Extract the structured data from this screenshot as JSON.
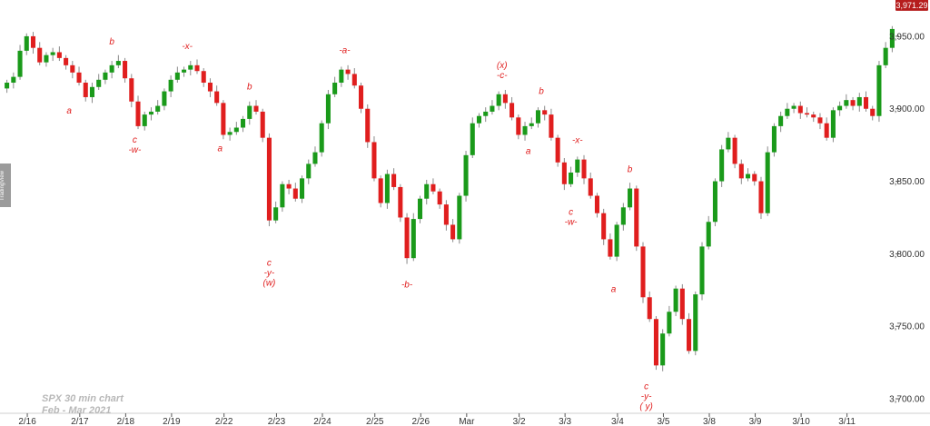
{
  "chart_data": {
    "type": "candlestick",
    "annotation_lines": [
      "SPX 30 min chart",
      "Feb - Mar 2021"
    ],
    "watermark": "TradingView",
    "last_price": "3,971.29",
    "last_price_value": 3971.29,
    "ylim": [
      3690,
      3975
    ],
    "y_ticks": [
      {
        "value": 3700,
        "label": "3,700.00"
      },
      {
        "value": 3750,
        "label": "3,750.00"
      },
      {
        "value": 3800,
        "label": "3,800.00"
      },
      {
        "value": 3850,
        "label": "3,850.00"
      },
      {
        "value": 3900,
        "label": "3,900.00"
      },
      {
        "value": 3950,
        "label": "3,950.00"
      }
    ],
    "x_ticks": [
      "2/16",
      "2/17",
      "2/18",
      "2/19",
      "2/22",
      "2/23",
      "2/24",
      "2/25",
      "2/26",
      "Mar",
      "3/2",
      "3/3",
      "3/4",
      "3/5",
      "3/8",
      "3/9",
      "3/10",
      "3/11"
    ],
    "colors": {
      "up": "#1a9a1a",
      "down": "#e01e1e",
      "wick": "#8a8a8a",
      "wave": "#e01e1e",
      "price_tag": "#b51c1c"
    },
    "waypoints": [
      [
        0,
        3918
      ],
      [
        1,
        3922
      ],
      [
        2,
        3940
      ],
      [
        3,
        3950
      ],
      [
        4,
        3942
      ],
      [
        5,
        3932
      ],
      [
        6,
        3937
      ],
      [
        7,
        3939
      ],
      [
        8,
        3935
      ],
      [
        9,
        3930
      ],
      [
        10,
        3925
      ],
      [
        11,
        3918
      ],
      [
        12,
        3908
      ],
      [
        13,
        3915
      ],
      [
        14,
        3920
      ],
      [
        15,
        3925
      ],
      [
        16,
        3930
      ],
      [
        17,
        3933
      ],
      [
        18,
        3921
      ],
      [
        19,
        3905
      ],
      [
        20,
        3888
      ],
      [
        21,
        3896
      ],
      [
        22,
        3898
      ],
      [
        23,
        3902
      ],
      [
        24,
        3912
      ],
      [
        25,
        3920
      ],
      [
        26,
        3925
      ],
      [
        27,
        3927
      ],
      [
        28,
        3930
      ],
      [
        29,
        3926
      ],
      [
        30,
        3918
      ],
      [
        31,
        3912
      ],
      [
        32,
        3904
      ],
      [
        33,
        3882
      ],
      [
        34,
        3884
      ],
      [
        35,
        3887
      ],
      [
        36,
        3893
      ],
      [
        37,
        3902
      ],
      [
        38,
        3898
      ],
      [
        39,
        3880
      ],
      [
        40,
        3823
      ],
      [
        41,
        3832
      ],
      [
        42,
        3848
      ],
      [
        43,
        3845
      ],
      [
        44,
        3838
      ],
      [
        45,
        3852
      ],
      [
        46,
        3862
      ],
      [
        47,
        3870
      ],
      [
        48,
        3890
      ],
      [
        49,
        3910
      ],
      [
        50,
        3918
      ],
      [
        51,
        3927
      ],
      [
        52,
        3924
      ],
      [
        53,
        3916
      ],
      [
        54,
        3900
      ],
      [
        55,
        3877
      ],
      [
        56,
        3852
      ],
      [
        57,
        3835
      ],
      [
        58,
        3855
      ],
      [
        59,
        3846
      ],
      [
        60,
        3825
      ],
      [
        61,
        3797
      ],
      [
        62,
        3824
      ],
      [
        63,
        3838
      ],
      [
        64,
        3848
      ],
      [
        65,
        3843
      ],
      [
        66,
        3834
      ],
      [
        67,
        3820
      ],
      [
        68,
        3810
      ],
      [
        69,
        3840
      ],
      [
        70,
        3868
      ],
      [
        71,
        3890
      ],
      [
        72,
        3895
      ],
      [
        73,
        3898
      ],
      [
        74,
        3902
      ],
      [
        75,
        3910
      ],
      [
        76,
        3904
      ],
      [
        77,
        3894
      ],
      [
        78,
        3882
      ],
      [
        79,
        3888
      ],
      [
        80,
        3890
      ],
      [
        81,
        3899
      ],
      [
        82,
        3896
      ],
      [
        83,
        3880
      ],
      [
        84,
        3863
      ],
      [
        85,
        3848
      ],
      [
        86,
        3856
      ],
      [
        87,
        3865
      ],
      [
        88,
        3852
      ],
      [
        89,
        3840
      ],
      [
        90,
        3828
      ],
      [
        91,
        3810
      ],
      [
        92,
        3798
      ],
      [
        93,
        3820
      ],
      [
        94,
        3832
      ],
      [
        95,
        3845
      ],
      [
        96,
        3805
      ],
      [
        97,
        3770
      ],
      [
        98,
        3755
      ],
      [
        99,
        3723
      ],
      [
        100,
        3745
      ],
      [
        101,
        3760
      ],
      [
        102,
        3776
      ],
      [
        103,
        3755
      ],
      [
        104,
        3733
      ],
      [
        105,
        3772
      ],
      [
        106,
        3805
      ],
      [
        107,
        3822
      ],
      [
        108,
        3850
      ],
      [
        109,
        3872
      ],
      [
        110,
        3880
      ],
      [
        111,
        3862
      ],
      [
        112,
        3852
      ],
      [
        113,
        3855
      ],
      [
        114,
        3850
      ],
      [
        115,
        3828
      ],
      [
        116,
        3870
      ],
      [
        117,
        3888
      ],
      [
        118,
        3895
      ],
      [
        119,
        3900
      ],
      [
        120,
        3902
      ],
      [
        121,
        3897
      ],
      [
        122,
        3896
      ],
      [
        123,
        3894
      ],
      [
        124,
        3890
      ],
      [
        125,
        3880
      ],
      [
        126,
        3899
      ],
      [
        127,
        3902
      ],
      [
        128,
        3906
      ],
      [
        129,
        3902
      ],
      [
        130,
        3908
      ],
      [
        131,
        3900
      ],
      [
        132,
        3895
      ],
      [
        133,
        3930
      ],
      [
        134,
        3942
      ],
      [
        135,
        3955
      ]
    ],
    "x_tick_indices": [
      2,
      10,
      17,
      24,
      32,
      40,
      47,
      55,
      62,
      69,
      77,
      84,
      92,
      99,
      106,
      113,
      120,
      127
    ],
    "wave_labels": [
      {
        "lines": [
          "a"
        ],
        "index": 9.5,
        "below": true,
        "value": 3908
      },
      {
        "lines": [
          "b"
        ],
        "index": 16,
        "below": false,
        "value": 3933
      },
      {
        "lines": [
          "c",
          "-w-"
        ],
        "index": 19.5,
        "below": true,
        "value": 3888
      },
      {
        "lines": [
          "-x-"
        ],
        "index": 27.5,
        "below": false,
        "value": 3930
      },
      {
        "lines": [
          "a"
        ],
        "index": 32.5,
        "below": true,
        "value": 3882
      },
      {
        "lines": [
          "b"
        ],
        "index": 37,
        "below": false,
        "value": 3902
      },
      {
        "lines": [
          "c",
          "-y-",
          "(w)"
        ],
        "index": 40,
        "below": true,
        "value": 3803
      },
      {
        "lines": [
          "-a-"
        ],
        "index": 51.5,
        "below": false,
        "value": 3927
      },
      {
        "lines": [
          "-b-"
        ],
        "index": 61,
        "below": true,
        "value": 3788
      },
      {
        "lines": [
          "(x)",
          "-c-"
        ],
        "index": 75.5,
        "below": false,
        "value": 3910
      },
      {
        "lines": [
          "a"
        ],
        "index": 79.5,
        "below": true,
        "value": 3880
      },
      {
        "lines": [
          "b"
        ],
        "index": 81.5,
        "below": false,
        "value": 3899
      },
      {
        "lines": [
          "c",
          "-w-"
        ],
        "index": 86,
        "below": true,
        "value": 3838
      },
      {
        "lines": [
          "-x-"
        ],
        "index": 87,
        "below": false,
        "value": 3865
      },
      {
        "lines": [
          "a"
        ],
        "index": 92.5,
        "below": true,
        "value": 3785
      },
      {
        "lines": [
          "b"
        ],
        "index": 95,
        "below": false,
        "value": 3845
      },
      {
        "lines": [
          "c",
          "-y-",
          "( y)"
        ],
        "index": 97.5,
        "below": true,
        "value": 3718
      }
    ],
    "grid": false
  }
}
